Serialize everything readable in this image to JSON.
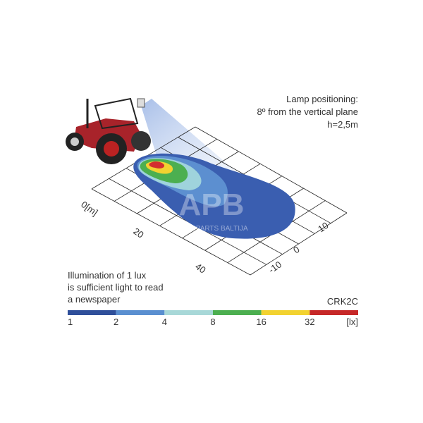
{
  "note": {
    "lines": [
      "Lamp positioning:",
      "8º from the vertical plane",
      "h=2,5m"
    ]
  },
  "axis_labels": {
    "length": [
      "0[m]",
      "20",
      "40"
    ],
    "width": [
      "10",
      "0",
      "-10"
    ]
  },
  "caption": [
    "Illumination of 1 lux",
    "is sufficient light to read",
    "a newspaper"
  ],
  "model": "CRK2C",
  "watermark": {
    "logo": "APB",
    "text": "AGROPARTS BALTIJA"
  },
  "scale": {
    "labels": [
      "1",
      "2",
      "4",
      "8",
      "16",
      "32",
      "[lx]"
    ]
  }
}
